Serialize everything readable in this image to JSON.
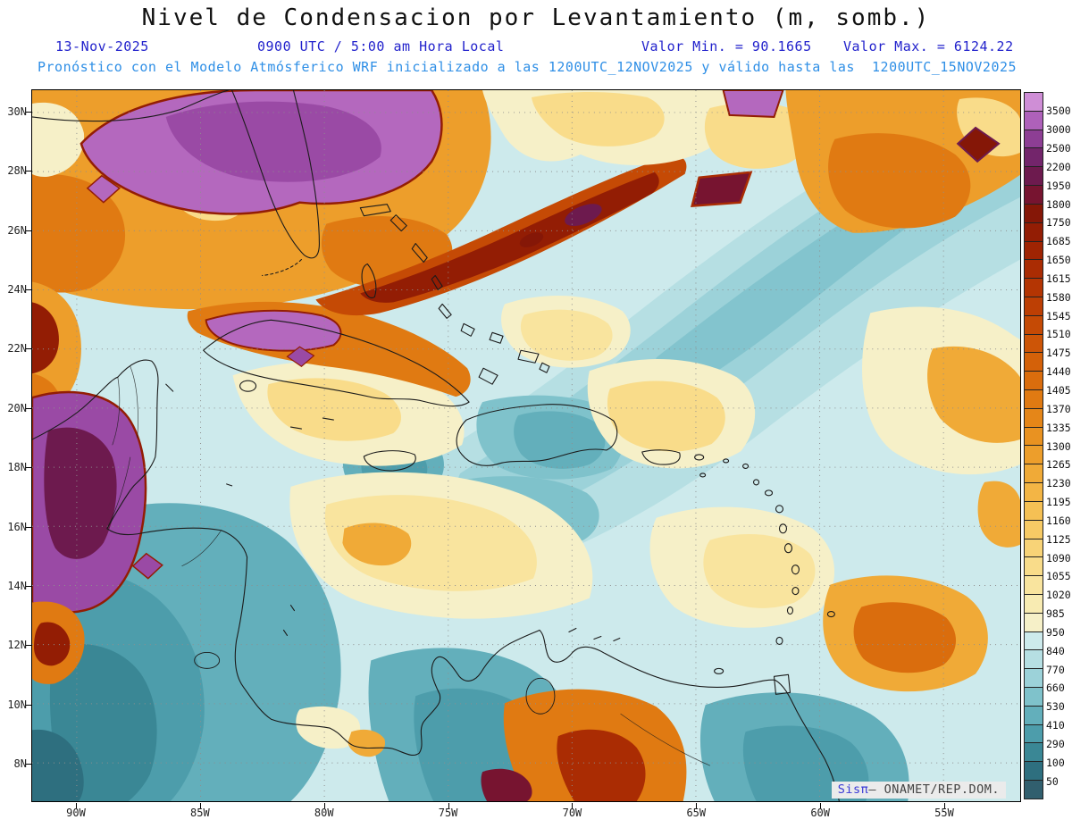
{
  "title": "Nivel de Condensacion por Levantamiento (m, somb.)",
  "header": {
    "date": "13-Nov-2025",
    "time_local": "0900 UTC / 5:00 am Hora Local",
    "value_min": "Valor Min. = 90.1665",
    "value_max": "Valor Max. = 6124.22",
    "forecast_line": "Pronóstico con el Modelo Atmósferico WRF inicializado a las 1200UTC_12NOV2025 y válido hasta las  1200UTC_15NOV2025"
  },
  "watermark": {
    "app": "Sis",
    "pi": "π",
    "separator": "– ",
    "org": "ONAMET/REP.DOM."
  },
  "colors": {
    "header_blue": "#2222cc",
    "forecast_blue": "#2f8fe6",
    "title_black": "#111111"
  },
  "chart_data": {
    "type": "heatmap",
    "title": "Nivel de Condensacion por Levantamiento (m, somb.)",
    "units": "m",
    "value_min": 90.1665,
    "value_max": 6124.22,
    "model": "WRF",
    "initialized": "1200UTC_12NOV2025",
    "valid_until": "1200UTC_15NOV2025",
    "valid_time": "13-Nov-2025 0900 UTC / 5:00 am Hora Local",
    "region": "Caribbean / Gulf of Mexico",
    "lat_ticks": [
      "30N",
      "28N",
      "26N",
      "24N",
      "22N",
      "20N",
      "18N",
      "16N",
      "14N",
      "12N",
      "10N",
      "8N"
    ],
    "lon_ticks": [
      "90W",
      "85W",
      "80W",
      "75W",
      "70W",
      "65W",
      "60W",
      "55W"
    ],
    "grid": true,
    "legend_position": "right",
    "colorbar_levels": [
      50,
      100,
      290,
      410,
      530,
      660,
      770,
      840,
      950,
      985,
      1020,
      1055,
      1090,
      1125,
      1160,
      1195,
      1230,
      1265,
      1300,
      1335,
      1370,
      1405,
      1440,
      1475,
      1510,
      1545,
      1580,
      1615,
      1650,
      1685,
      1750,
      1800,
      1950,
      2200,
      2500,
      3000,
      3500
    ],
    "colorbar_colors_low_to_high": [
      "#315f6e",
      "#2e6f7f",
      "#3a8795",
      "#4d9dab",
      "#63afbb",
      "#7fc2cb",
      "#9cd2d9",
      "#b6dfe3",
      "#cdeaec",
      "#f6f0c8",
      "#f8ebb2",
      "#f9e49e",
      "#f9dc8a",
      "#f8d377",
      "#f7ca65",
      "#f5c054",
      "#f3b545",
      "#f0aa37",
      "#ed9e2b",
      "#e99221",
      "#e58618",
      "#e07a12",
      "#da6d0d",
      "#d46109",
      "#cd5507",
      "#c54a05",
      "#bd3f04",
      "#b43503",
      "#aa2c03",
      "#9f2403",
      "#931d04",
      "#851707",
      "#771430",
      "#6d1a4e",
      "#73256b",
      "#8d3e94",
      "#ae61ba",
      "#cf8ed6"
    ]
  }
}
